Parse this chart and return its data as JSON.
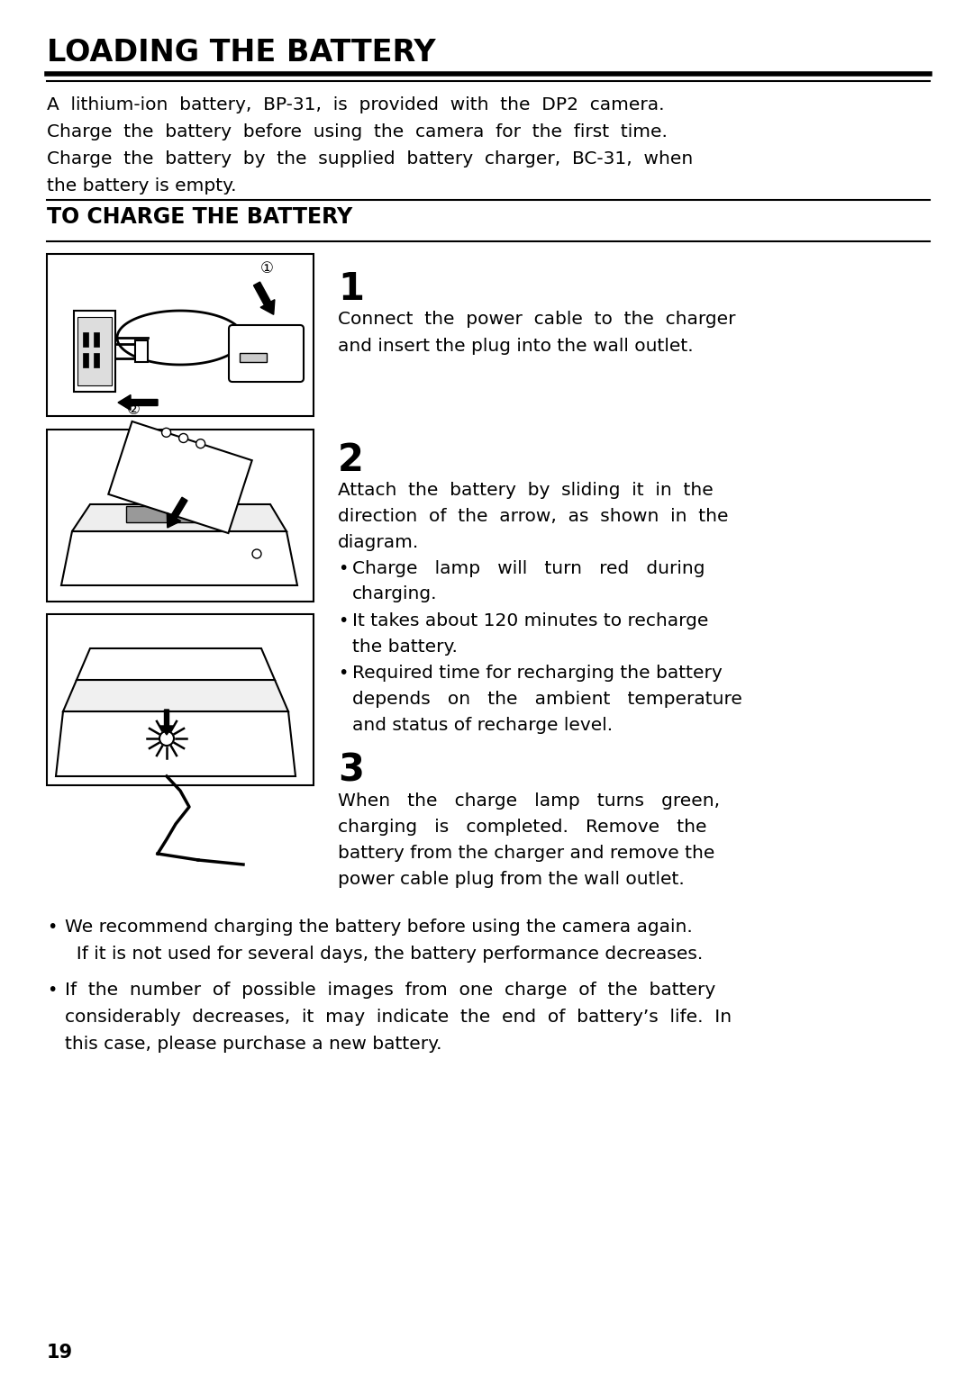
{
  "title": "LOADING THE BATTERY",
  "section2_title": "TO CHARGE THE BATTERY",
  "intro_line1": "A  lithium-ion  battery,  BP-31,  is  provided  with  the  DP2  camera.",
  "intro_line2": "Charge  the  battery  before  using  the  camera  for  the  first  time.",
  "intro_line3": "Charge  the  battery  by  the  supplied  battery  charger,  BC-31,  when",
  "intro_line4": "the battery is empty.",
  "step1_num": "1",
  "step1_line1": "Connect  the  power  cable  to  the  charger",
  "step1_line2": "and insert the plug into the wall outlet.",
  "step2_num": "2",
  "step2_line1": "Attach  the  battery  by  sliding  it  in  the",
  "step2_line2": "direction  of  the  arrow,  as  shown  in  the",
  "step2_line3": "diagram.",
  "b1_line1": "Charge   lamp   will   turn   red   during",
  "b1_line2": "charging.",
  "b2_line1": "It takes about 120 minutes to recharge",
  "b2_line2": "the battery.",
  "b3_line1": "Required time for recharging the battery",
  "b3_line2": "depends   on   the   ambient   temperature",
  "b3_line3": "and status of recharge level.",
  "step3_num": "3",
  "step3_line1": "When   the   charge   lamp   turns   green,",
  "step3_line2": "charging   is   completed.   Remove   the",
  "step3_line3": "battery from the charger and remove the",
  "step3_line4": "power cable plug from the wall outlet.",
  "foot1_line1": "We recommend charging the battery before using the camera again.",
  "foot1_line2": "  If it is not used for several days, the battery performance decreases.",
  "foot2_line1": "If  the  number  of  possible  images  from  one  charge  of  the  battery",
  "foot2_line2": "considerably  decreases,  it  may  indicate  the  end  of  battery’s  life.  In",
  "foot2_line3": "this case, please purchase a new battery.",
  "page_num": "19",
  "bg_color": "#ffffff",
  "text_color": "#000000"
}
